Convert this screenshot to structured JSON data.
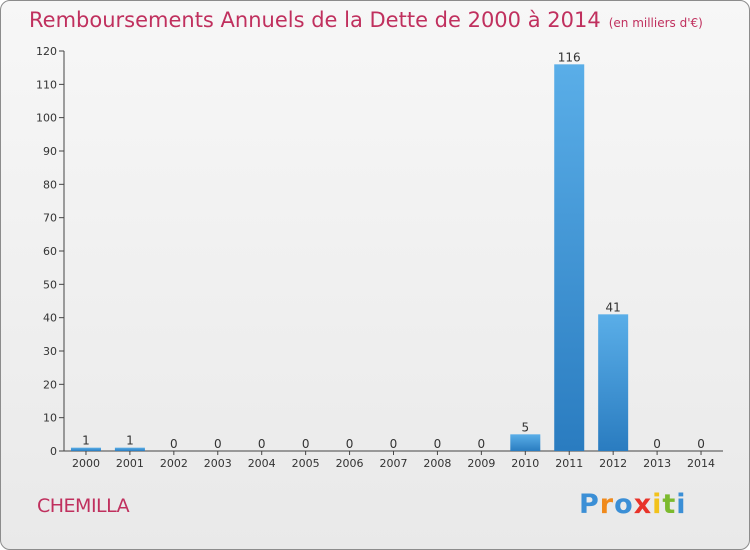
{
  "header": {
    "title": "Remboursements Annuels de la Dette de 2000 à 2014",
    "unit": "(en milliers d'€)"
  },
  "commune": "CHEMILLA",
  "logo": {
    "text": "Proxiti",
    "letters": [
      {
        "ch": "P",
        "color": "#3b8fd6"
      },
      {
        "ch": "r",
        "color": "#f08a1c"
      },
      {
        "ch": "o",
        "color": "#3b8fd6"
      },
      {
        "ch": "x",
        "color": "#e8332a"
      },
      {
        "ch": "i",
        "color": "#f2c21b"
      },
      {
        "ch": "t",
        "color": "#7cba2e"
      },
      {
        "ch": "i",
        "color": "#3b8fd6"
      }
    ]
  },
  "chart_data": {
    "type": "bar",
    "categories": [
      "2000",
      "2001",
      "2002",
      "2003",
      "2004",
      "2005",
      "2006",
      "2007",
      "2008",
      "2009",
      "2010",
      "2011",
      "2012",
      "2013",
      "2014"
    ],
    "values": [
      1,
      1,
      0,
      0,
      0,
      0,
      0,
      0,
      0,
      0,
      5,
      116,
      41,
      0,
      0
    ],
    "data_labels": [
      "1",
      "1",
      "0",
      "0",
      "0",
      "0",
      "0",
      "0",
      "0",
      "0",
      "5",
      "116",
      "41",
      "0",
      "0"
    ],
    "title": "Remboursements Annuels de la Dette de 2000 à 2014",
    "xlabel": "",
    "ylabel": "",
    "ylim": [
      0,
      120
    ],
    "yticks": [
      0,
      10,
      20,
      30,
      40,
      50,
      60,
      70,
      80,
      90,
      100,
      110,
      120
    ],
    "grid": false,
    "colors": {
      "bar_light": "#5aaee8",
      "bar_dark": "#2a7cc0",
      "axis": "#444444"
    }
  }
}
